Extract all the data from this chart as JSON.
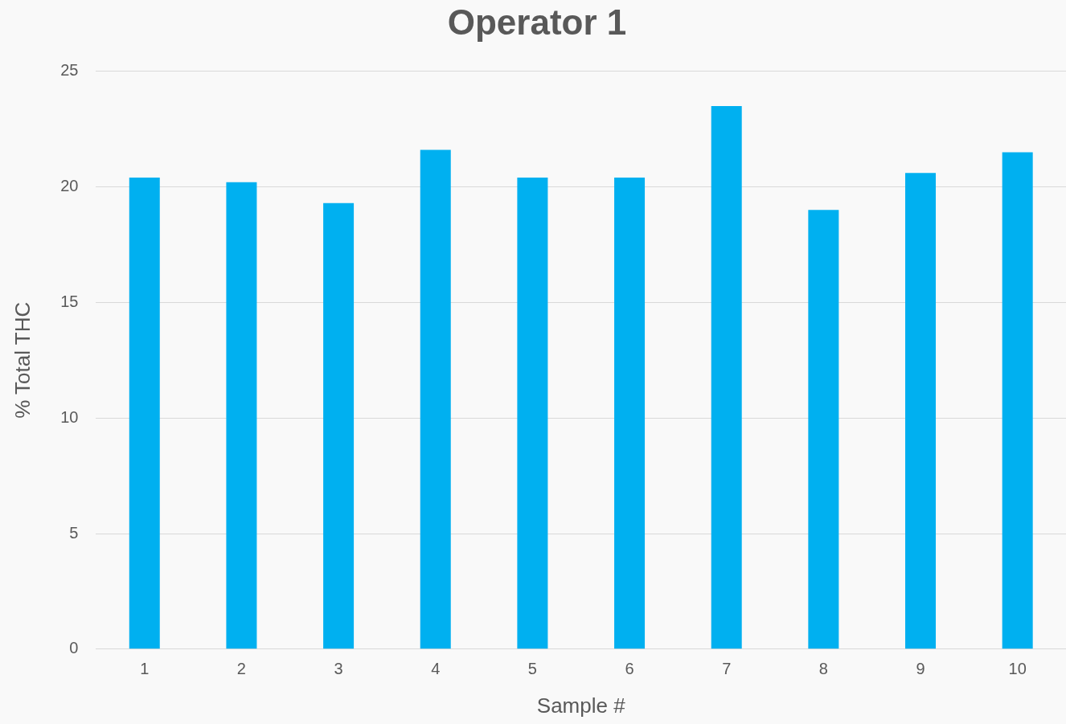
{
  "chart_data": {
    "type": "bar",
    "title": "Operator 1",
    "xlabel": "Sample #",
    "ylabel": "% Total THC",
    "categories": [
      "1",
      "2",
      "3",
      "4",
      "5",
      "6",
      "7",
      "8",
      "9",
      "10"
    ],
    "values": [
      20.4,
      20.2,
      19.3,
      21.6,
      20.4,
      20.4,
      23.5,
      19.0,
      20.6,
      21.5
    ],
    "color": "#00b0f0",
    "ylim": [
      0,
      25
    ],
    "yticks": [
      0,
      5,
      10,
      15,
      20,
      25
    ],
    "grid": "y",
    "legend": false
  }
}
